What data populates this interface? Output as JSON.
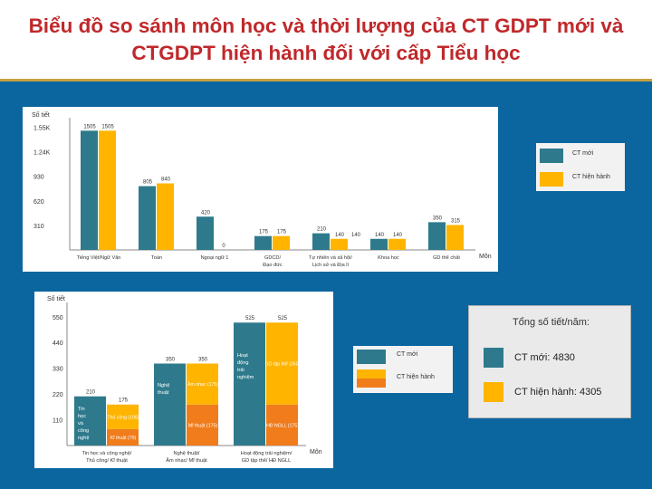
{
  "title": "Biểu đồ so sánh môn học và thời lượng của CT GDPT mới và CTGDPT hiện hành đối với cấp Tiểu học",
  "colors": {
    "new": "#2e7a8c",
    "current": "#ffb400",
    "orange": "#f07c1c",
    "background": "#0b66a0",
    "title": "#c0282b"
  },
  "chart_data": [
    {
      "type": "bar",
      "ylabel": "Số tiết",
      "xlabel": "Môn",
      "yticks": [
        "1.55K",
        "1.24K",
        "930",
        "620",
        "310"
      ],
      "categories": [
        "Tiếng Việt/Ngữ Văn",
        "Toán",
        "Ngoại ngữ 1",
        "GDCD/ Đạo đức",
        "Tự nhiên và xã hội/ Lịch sử và Địa lí",
        "Khoa học",
        "GD thể chất"
      ],
      "series": [
        {
          "name": "CT mới",
          "values": [
            1505,
            805,
            420,
            175,
            210,
            140,
            350
          ],
          "labels": [
            "1505",
            "805",
            "420",
            "175",
            "210",
            "140",
            "350"
          ]
        },
        {
          "name": "CT hiện hành",
          "values": [
            1505,
            840,
            0,
            175,
            140,
            140,
            315
          ],
          "labels": [
            "1505",
            "840",
            "0",
            "175",
            "140",
            "140",
            "315"
          ]
        }
      ],
      "extra_values": [
        140
      ]
    },
    {
      "type": "bar",
      "ylabel": "Số tiết",
      "xlabel": "Môn",
      "yticks": [
        "550",
        "440",
        "330",
        "220",
        "110"
      ],
      "categories": [
        "Tin học và công nghệ/ Thủ công/ Kĩ thuật",
        "Nghệ thuật/ Âm nhạc/ Mĩ thuật",
        "Hoạt động trải nghiệm/ GD tập thể/ HĐ NGLL"
      ],
      "series": [
        {
          "name": "CT mới",
          "values": [
            210,
            350,
            525
          ],
          "labels": [
            "210",
            "350",
            "525"
          ],
          "segments": [
            "Tin học và công nghệ",
            "Nghệ thuật",
            "Hoạt động trải nghiệm"
          ]
        },
        {
          "name": "CT hiện hành",
          "values": [
            175,
            350,
            525
          ],
          "labels": [
            "175",
            "350",
            "525"
          ],
          "stack": [
            {
              "top": "Thủ công (105)",
              "bottom": "Kĩ thuật (70)",
              "top_value": 105,
              "bottom_value": 70
            },
            {
              "top": "Âm nhạc (175)",
              "bottom": "Mĩ thuật (175)",
              "top_value": 175,
              "bottom_value": 175
            },
            {
              "top": "GD tập thể (350)",
              "bottom": "HĐ NGLL (175)",
              "top_value": 350,
              "bottom_value": 175
            }
          ]
        }
      ]
    }
  ],
  "legend": {
    "new": "CT mới",
    "current": "CT hiện hành"
  },
  "totals": {
    "title": "Tổng số tiết/năm:",
    "new": "CT mới: 4830",
    "current": "CT hiện hành: 4305"
  }
}
